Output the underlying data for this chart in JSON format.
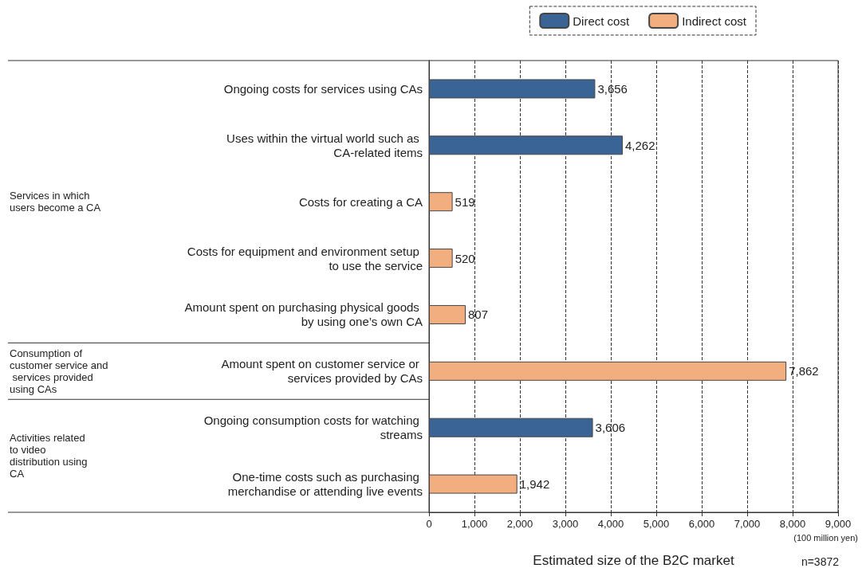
{
  "chart_data": {
    "type": "bar",
    "orientation": "horizontal",
    "xlabel": "Estimated size of the B2C market",
    "categories": [
      "Ongoing costs for services using CAs",
      "Uses within the virtual world such as CA-related items",
      "Costs for creating a CA",
      "Costs for equipment and environment setup to use the service",
      "Amount spent on purchasing physical goods by using one’s own CA",
      "Amount spent on customer service or services provided by CAs",
      "Ongoing consumption costs for watching streams",
      "One-time costs such as purchasing merchandise or attending live events"
    ],
    "series": [
      {
        "name": "Direct cost",
        "color": "#3a6496",
        "values": [
          3656,
          4262,
          null,
          null,
          null,
          null,
          3606,
          null
        ],
        "value_labels": [
          "3,656",
          "4,262",
          null,
          null,
          null,
          null,
          "3,606",
          null
        ]
      },
      {
        "name": "Indirect cost",
        "color": "#f2ae7f",
        "values": [
          null,
          null,
          519,
          520,
          807,
          7862,
          null,
          1942
        ],
        "value_labels": [
          null,
          null,
          "519",
          "520",
          "807",
          "7,862",
          null,
          "1,942"
        ]
      }
    ],
    "xlim": [
      0,
      9000
    ],
    "xticks": [
      0,
      {
        "value": 1000,
        "label": "1,000"
      },
      {
        "value": 2000,
        "label": "2,000"
      },
      {
        "value": 3000,
        "label": "3,000"
      },
      {
        "value": 4000,
        "label": "4,000"
      },
      {
        "value": 5000,
        "label": "5,000"
      },
      {
        "value": 6000,
        "label": "6,000"
      },
      {
        "value": 7000,
        "label": "7,000"
      },
      {
        "value": 8000,
        "label": "8,000"
      },
      {
        "value": 9000,
        "label": "9,000"
      }
    ],
    "grid": "x",
    "legend": "top right",
    "annotations": [
      "Services in which users become a CA",
      "Consumption of customer service and services provided using CAs",
      "Activities related to video distribution using CA",
      "(100 million yen)",
      "n=3872"
    ]
  }
}
